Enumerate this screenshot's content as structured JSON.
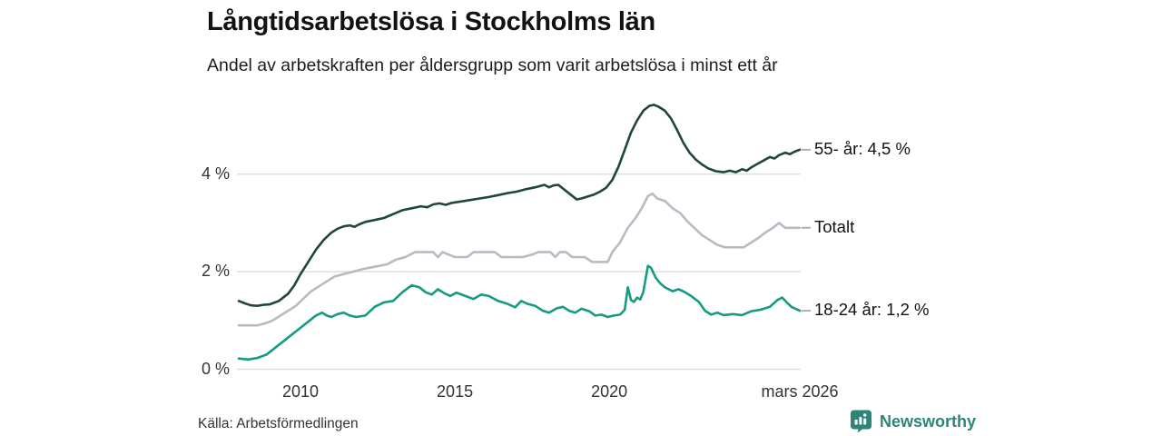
{
  "header": {
    "title": "Långtidsarbetslösa i Stockholms län",
    "subtitle": "Andel av arbetskraften per åldersgrupp som varit arbetslösa i minst ett år"
  },
  "footer": {
    "source": "Källa: Arbetsförmedlingen",
    "brand": "Newsworthy"
  },
  "colors": {
    "series_55": "#20453c",
    "series_total": "#b9bac3",
    "series_1824": "#169b82",
    "gridline": "#e0e0e0",
    "connector": "#a8a8a8",
    "brand_teal": "#2e8577",
    "text_dark": "#121212"
  },
  "chart_data": {
    "type": "line",
    "title": "Långtidsarbetslösa i Stockholms län",
    "subtitle": "Andel av arbetskraften per åldersgrupp som varit arbetslösa i minst ett år",
    "x_axis": {
      "range": [
        2008,
        2026.17
      ],
      "ticks": [
        {
          "label": "2010",
          "year": 2010
        },
        {
          "label": "2015",
          "year": 2015
        },
        {
          "label": "2020",
          "year": 2020
        },
        {
          "label": "mars 2026",
          "year": 2026.17
        }
      ]
    },
    "y_axis": {
      "unit": "%",
      "range": [
        0,
        5.6
      ],
      "ticks": [
        {
          "label": "0 %",
          "value": 0
        },
        {
          "label": "2 %",
          "value": 2
        },
        {
          "label": "4 %",
          "value": 4
        }
      ],
      "grid": true
    },
    "legend_position": "right-end-labels",
    "series": [
      {
        "id": "55-ar",
        "name": "55- år",
        "label": "55- år: 4,5 %",
        "end_value": 4.5,
        "color": "#20453c",
        "points": [
          [
            2008,
            1.4
          ],
          [
            2008.2,
            1.35
          ],
          [
            2008.4,
            1.31
          ],
          [
            2008.6,
            1.3
          ],
          [
            2008.8,
            1.32
          ],
          [
            2009,
            1.33
          ],
          [
            2009.3,
            1.4
          ],
          [
            2009.6,
            1.55
          ],
          [
            2009.8,
            1.72
          ],
          [
            2010,
            1.95
          ],
          [
            2010.25,
            2.2
          ],
          [
            2010.5,
            2.45
          ],
          [
            2010.75,
            2.65
          ],
          [
            2011,
            2.8
          ],
          [
            2011.2,
            2.88
          ],
          [
            2011.4,
            2.93
          ],
          [
            2011.6,
            2.95
          ],
          [
            2011.75,
            2.92
          ],
          [
            2011.9,
            2.97
          ],
          [
            2012.1,
            3.02
          ],
          [
            2012.4,
            3.06
          ],
          [
            2012.7,
            3.1
          ],
          [
            2013,
            3.18
          ],
          [
            2013.3,
            3.26
          ],
          [
            2013.6,
            3.3
          ],
          [
            2013.9,
            3.34
          ],
          [
            2014.1,
            3.32
          ],
          [
            2014.3,
            3.38
          ],
          [
            2014.5,
            3.4
          ],
          [
            2014.7,
            3.37
          ],
          [
            2014.9,
            3.41
          ],
          [
            2015.2,
            3.44
          ],
          [
            2015.5,
            3.47
          ],
          [
            2015.8,
            3.5
          ],
          [
            2016.1,
            3.53
          ],
          [
            2016.4,
            3.57
          ],
          [
            2016.7,
            3.61
          ],
          [
            2017,
            3.64
          ],
          [
            2017.3,
            3.69
          ],
          [
            2017.6,
            3.73
          ],
          [
            2017.9,
            3.78
          ],
          [
            2018.05,
            3.73
          ],
          [
            2018.2,
            3.77
          ],
          [
            2018.35,
            3.78
          ],
          [
            2018.55,
            3.68
          ],
          [
            2018.75,
            3.58
          ],
          [
            2018.95,
            3.48
          ],
          [
            2019.1,
            3.5
          ],
          [
            2019.3,
            3.54
          ],
          [
            2019.5,
            3.58
          ],
          [
            2019.7,
            3.64
          ],
          [
            2019.9,
            3.72
          ],
          [
            2020.1,
            3.88
          ],
          [
            2020.3,
            4.15
          ],
          [
            2020.5,
            4.5
          ],
          [
            2020.7,
            4.85
          ],
          [
            2020.9,
            5.1
          ],
          [
            2021.1,
            5.3
          ],
          [
            2021.3,
            5.4
          ],
          [
            2021.45,
            5.42
          ],
          [
            2021.6,
            5.38
          ],
          [
            2021.8,
            5.3
          ],
          [
            2022,
            5.14
          ],
          [
            2022.2,
            4.9
          ],
          [
            2022.4,
            4.64
          ],
          [
            2022.6,
            4.44
          ],
          [
            2022.8,
            4.3
          ],
          [
            2023,
            4.2
          ],
          [
            2023.2,
            4.12
          ],
          [
            2023.45,
            4.06
          ],
          [
            2023.7,
            4.04
          ],
          [
            2023.9,
            4.07
          ],
          [
            2024.1,
            4.04
          ],
          [
            2024.3,
            4.1
          ],
          [
            2024.45,
            4.07
          ],
          [
            2024.6,
            4.14
          ],
          [
            2024.8,
            4.21
          ],
          [
            2025,
            4.28
          ],
          [
            2025.2,
            4.35
          ],
          [
            2025.35,
            4.32
          ],
          [
            2025.5,
            4.39
          ],
          [
            2025.7,
            4.44
          ],
          [
            2025.85,
            4.41
          ],
          [
            2026,
            4.46
          ],
          [
            2026.17,
            4.5
          ]
        ]
      },
      {
        "id": "totalt",
        "name": "Totalt",
        "label": "Totalt",
        "end_value": 2.9,
        "color": "#b9bac3",
        "points": [
          [
            2008,
            0.9
          ],
          [
            2008.6,
            0.9
          ],
          [
            2008.9,
            0.95
          ],
          [
            2009.1,
            1
          ],
          [
            2009.35,
            1.1
          ],
          [
            2009.6,
            1.2
          ],
          [
            2009.85,
            1.3
          ],
          [
            2010.1,
            1.45
          ],
          [
            2010.35,
            1.6
          ],
          [
            2010.6,
            1.7
          ],
          [
            2010.85,
            1.8
          ],
          [
            2011.1,
            1.9
          ],
          [
            2011.4,
            1.95
          ],
          [
            2011.7,
            2
          ],
          [
            2012,
            2.05
          ],
          [
            2012.4,
            2.1
          ],
          [
            2012.8,
            2.15
          ],
          [
            2013.1,
            2.25
          ],
          [
            2013.4,
            2.3
          ],
          [
            2013.7,
            2.4
          ],
          [
            2014.3,
            2.4
          ],
          [
            2014.45,
            2.3
          ],
          [
            2014.6,
            2.4
          ],
          [
            2014.8,
            2.35
          ],
          [
            2015,
            2.3
          ],
          [
            2015.4,
            2.3
          ],
          [
            2015.6,
            2.4
          ],
          [
            2016.3,
            2.4
          ],
          [
            2016.5,
            2.3
          ],
          [
            2017.2,
            2.3
          ],
          [
            2017.5,
            2.35
          ],
          [
            2017.7,
            2.4
          ],
          [
            2018.1,
            2.4
          ],
          [
            2018.25,
            2.3
          ],
          [
            2018.4,
            2.4
          ],
          [
            2018.6,
            2.4
          ],
          [
            2018.8,
            2.3
          ],
          [
            2019.2,
            2.3
          ],
          [
            2019.45,
            2.2
          ],
          [
            2019.95,
            2.2
          ],
          [
            2020.1,
            2.4
          ],
          [
            2020.35,
            2.6
          ],
          [
            2020.6,
            2.9
          ],
          [
            2020.85,
            3.1
          ],
          [
            2021.05,
            3.3
          ],
          [
            2021.25,
            3.55
          ],
          [
            2021.4,
            3.6
          ],
          [
            2021.55,
            3.5
          ],
          [
            2021.8,
            3.45
          ],
          [
            2022.05,
            3.3
          ],
          [
            2022.3,
            3.2
          ],
          [
            2022.5,
            3.05
          ],
          [
            2022.75,
            2.9
          ],
          [
            2023,
            2.75
          ],
          [
            2023.25,
            2.65
          ],
          [
            2023.5,
            2.55
          ],
          [
            2023.75,
            2.5
          ],
          [
            2024.35,
            2.5
          ],
          [
            2024.6,
            2.6
          ],
          [
            2024.85,
            2.7
          ],
          [
            2025.05,
            2.8
          ],
          [
            2025.3,
            2.9
          ],
          [
            2025.5,
            3
          ],
          [
            2025.7,
            2.9
          ],
          [
            2026.17,
            2.9
          ]
        ]
      },
      {
        "id": "18-24-ar",
        "name": "18-24 år",
        "label": "18-24 år: 1,2 %",
        "end_value": 1.2,
        "color": "#169b82",
        "points": [
          [
            2008,
            0.22
          ],
          [
            2008.3,
            0.2
          ],
          [
            2008.6,
            0.23
          ],
          [
            2008.9,
            0.3
          ],
          [
            2009.2,
            0.45
          ],
          [
            2009.5,
            0.6
          ],
          [
            2009.8,
            0.75
          ],
          [
            2010,
            0.85
          ],
          [
            2010.3,
            1
          ],
          [
            2010.5,
            1.1
          ],
          [
            2010.7,
            1.16
          ],
          [
            2010.85,
            1.1
          ],
          [
            2011,
            1.07
          ],
          [
            2011.2,
            1.13
          ],
          [
            2011.4,
            1.16
          ],
          [
            2011.6,
            1.1
          ],
          [
            2011.8,
            1.07
          ],
          [
            2012.1,
            1.1
          ],
          [
            2012.4,
            1.28
          ],
          [
            2012.7,
            1.37
          ],
          [
            2013,
            1.4
          ],
          [
            2013.3,
            1.58
          ],
          [
            2013.6,
            1.72
          ],
          [
            2013.85,
            1.68
          ],
          [
            2014.05,
            1.58
          ],
          [
            2014.25,
            1.53
          ],
          [
            2014.45,
            1.64
          ],
          [
            2014.65,
            1.56
          ],
          [
            2014.85,
            1.5
          ],
          [
            2015.05,
            1.57
          ],
          [
            2015.3,
            1.51
          ],
          [
            2015.6,
            1.44
          ],
          [
            2015.85,
            1.53
          ],
          [
            2016.1,
            1.5
          ],
          [
            2016.4,
            1.4
          ],
          [
            2016.7,
            1.34
          ],
          [
            2016.95,
            1.27
          ],
          [
            2017.15,
            1.4
          ],
          [
            2017.35,
            1.34
          ],
          [
            2017.6,
            1.3
          ],
          [
            2017.85,
            1.2
          ],
          [
            2018.05,
            1.16
          ],
          [
            2018.3,
            1.25
          ],
          [
            2018.5,
            1.28
          ],
          [
            2018.7,
            1.2
          ],
          [
            2018.9,
            1.16
          ],
          [
            2019.1,
            1.24
          ],
          [
            2019.35,
            1.19
          ],
          [
            2019.55,
            1.1
          ],
          [
            2019.75,
            1.12
          ],
          [
            2019.95,
            1.07
          ],
          [
            2020.15,
            1.1
          ],
          [
            2020.35,
            1.12
          ],
          [
            2020.5,
            1.22
          ],
          [
            2020.6,
            1.68
          ],
          [
            2020.7,
            1.42
          ],
          [
            2020.8,
            1.38
          ],
          [
            2020.9,
            1.47
          ],
          [
            2021,
            1.43
          ],
          [
            2021.1,
            1.58
          ],
          [
            2021.25,
            2.12
          ],
          [
            2021.35,
            2.08
          ],
          [
            2021.5,
            1.88
          ],
          [
            2021.65,
            1.76
          ],
          [
            2021.8,
            1.68
          ],
          [
            2022.05,
            1.6
          ],
          [
            2022.25,
            1.64
          ],
          [
            2022.45,
            1.58
          ],
          [
            2022.65,
            1.5
          ],
          [
            2022.9,
            1.38
          ],
          [
            2023.1,
            1.2
          ],
          [
            2023.3,
            1.12
          ],
          [
            2023.5,
            1.16
          ],
          [
            2023.7,
            1.11
          ],
          [
            2024,
            1.13
          ],
          [
            2024.3,
            1.11
          ],
          [
            2024.6,
            1.19
          ],
          [
            2024.9,
            1.22
          ],
          [
            2025.2,
            1.28
          ],
          [
            2025.45,
            1.42
          ],
          [
            2025.6,
            1.47
          ],
          [
            2025.75,
            1.37
          ],
          [
            2025.9,
            1.28
          ],
          [
            2026.17,
            1.2
          ]
        ]
      }
    ]
  }
}
